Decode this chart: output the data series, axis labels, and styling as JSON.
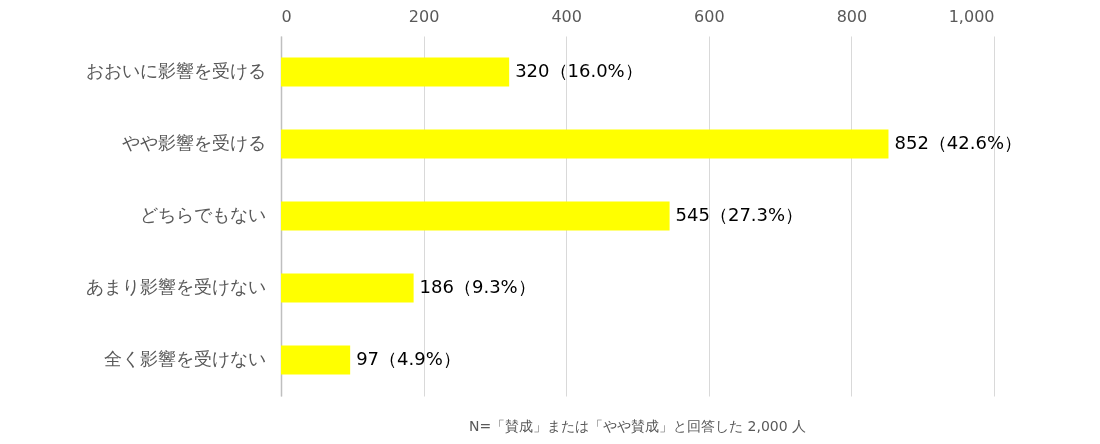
{
  "chart_data": {
    "type": "bar",
    "orientation": "horizontal",
    "categories": [
      "おおいに影響を受ける",
      "やや影響を受ける",
      "どちらでもない",
      "あまり影響を受けない",
      "全く影響を受けない"
    ],
    "values": [
      320,
      852,
      545,
      186,
      97
    ],
    "value_labels": [
      "320（16.0%）",
      "852（42.6%）",
      "545（27.3%）",
      "186（9.3%）",
      "97（4.9%）"
    ],
    "color": "#ffff00",
    "xlim": [
      0,
      1000
    ],
    "xticks": [
      0,
      200,
      400,
      600,
      800,
      {
        "value": 1000,
        "label": "1,000"
      }
    ],
    "grid": "x",
    "annotations": [
      "N=「賛成」または「やや賛成」と回答した 2,000 人"
    ]
  }
}
